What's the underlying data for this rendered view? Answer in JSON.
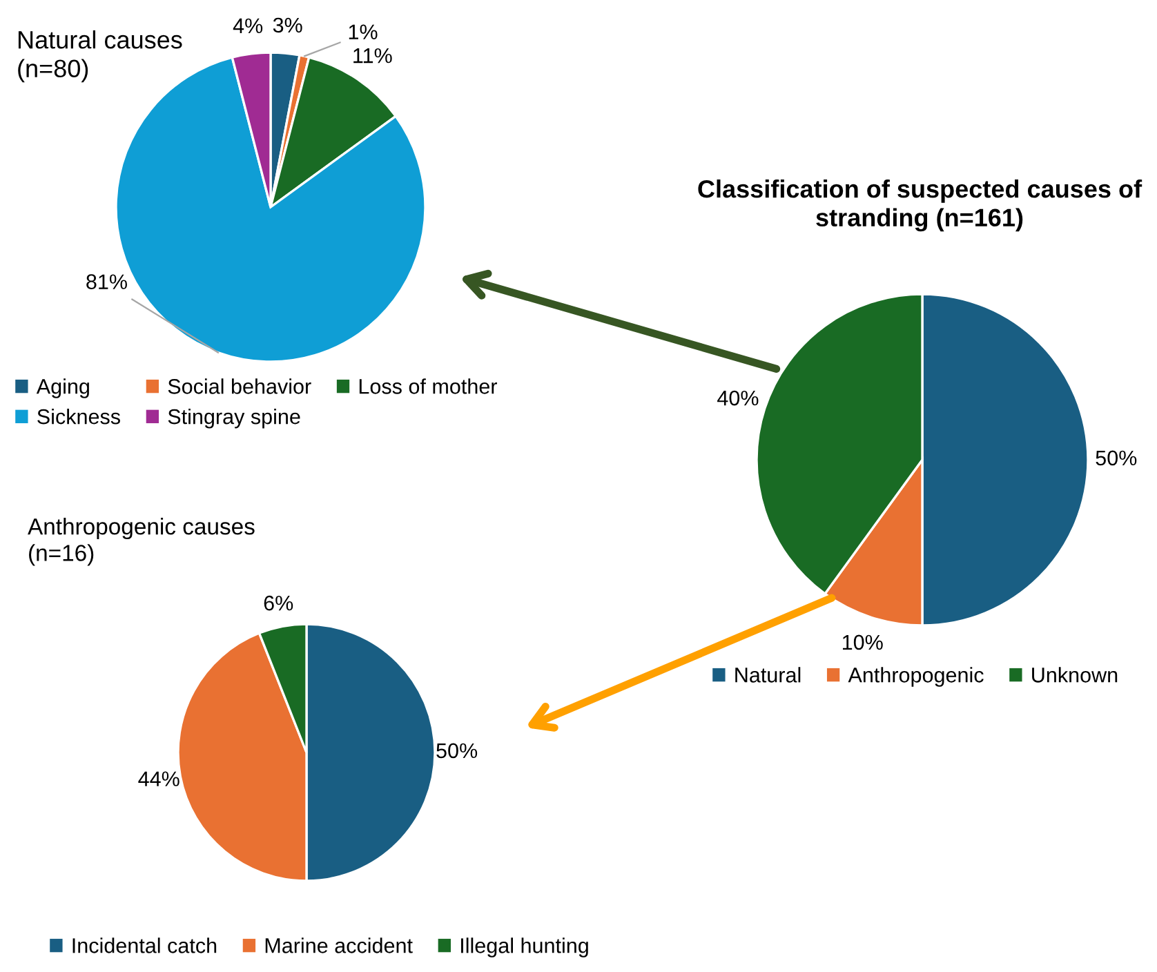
{
  "chart_data": [
    {
      "type": "pie",
      "title": "Natural causes\n(n=80)",
      "categories": [
        "Aging",
        "Social behavior",
        "Loss of mother",
        "Sickness",
        "Stingray spine"
      ],
      "values": [
        3,
        1,
        11,
        81,
        4
      ],
      "colors": [
        "#195e83",
        "#e97132",
        "#196b24",
        "#0f9ed5",
        "#a02b93"
      ],
      "value_labels": [
        "3%",
        "1%",
        "11%",
        "81%",
        "4%"
      ],
      "legend": "bottom"
    },
    {
      "type": "pie",
      "title": "Classification of suspected causes of\nstranding (n=161)",
      "categories": [
        "Natural",
        "Anthropogenic",
        "Unknown"
      ],
      "values": [
        50,
        10,
        40
      ],
      "colors": [
        "#195e83",
        "#e97132",
        "#196b24"
      ],
      "value_labels": [
        "50%",
        "10%",
        "40%"
      ],
      "legend": "bottom"
    },
    {
      "type": "pie",
      "title": "Anthropogenic causes\n(n=16)",
      "categories": [
        "Incidental catch",
        "Marine accident",
        "Illegal hunting"
      ],
      "values": [
        50,
        44,
        6
      ],
      "colors": [
        "#195e83",
        "#e97132",
        "#196b24"
      ],
      "value_labels": [
        "50%",
        "44%",
        "6%"
      ],
      "legend": "bottom"
    }
  ]
}
